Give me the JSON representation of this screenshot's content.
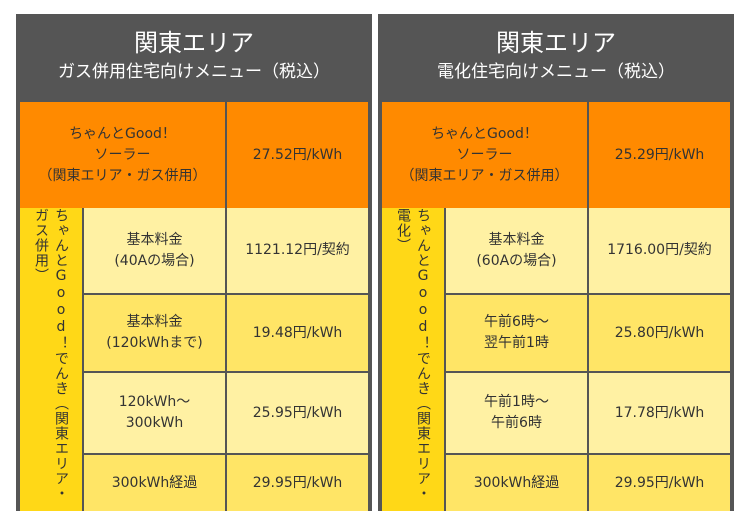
{
  "left": {
    "title": "関東エリア",
    "subtitle": "ガス併用住宅向けメニュー（税込）",
    "solar": {
      "line1": "ちゃんとGood！",
      "line2": "ソーラー",
      "line3": "（関東エリア・ガス併用）",
      "price": "27.52円/kWh"
    },
    "plan_name": "ちゃんとGood！でんき（関東エリア・ガス併用）",
    "rows": [
      {
        "label1": "基本料金",
        "label2": "(40Aの場合)",
        "price": "1121.12円/契約"
      },
      {
        "label1": "基本料金",
        "label2": "(120kWhまで)",
        "price": "19.48円/kWh"
      },
      {
        "label1": "120kWh～",
        "label2": "300kWh",
        "price": "25.95円/kWh"
      },
      {
        "label1": "300kWh経過",
        "label2": "",
        "price": "29.95円/kWh"
      }
    ]
  },
  "right": {
    "title": "関東エリア",
    "subtitle": "電化住宅向けメニュー（税込）",
    "solar": {
      "line1": "ちゃんとGood！",
      "line2": "ソーラー",
      "line3": "（関東エリア・ガス併用）",
      "price": "25.29円/kWh"
    },
    "plan_name": "ちゃんとGood！でんき（関東エリア・電化）",
    "rows": [
      {
        "label1": "基本料金",
        "label2": "(60Aの場合)",
        "price": "1716.00円/契約"
      },
      {
        "label1": "午前6時～",
        "label2": "翌午前1時",
        "price": "25.80円/kWh"
      },
      {
        "label1": "午前1時～",
        "label2": "午前6時",
        "price": "17.78円/kWh"
      },
      {
        "label1": "300kWh経過",
        "label2": "",
        "price": "29.95円/kWh"
      }
    ]
  },
  "colors": {
    "header": "#555555",
    "solar": "#ff8a00",
    "plan_column": "#ffd817",
    "row_light": "#fff1a3",
    "row_yellow": "#ffe566"
  }
}
